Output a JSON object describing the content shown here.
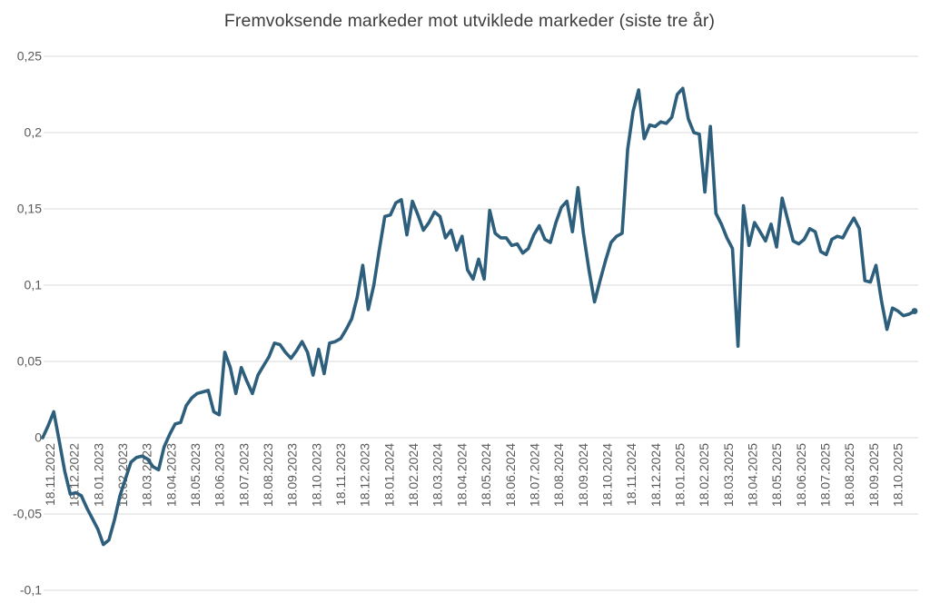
{
  "chart_data": {
    "type": "line",
    "title": "Fremvoksende markeder mot utviklede markeder (siste tre år)",
    "grid": "horizontal",
    "legend": "none",
    "line_color": "#2d5f7d",
    "grid_color": "#d9d9d9",
    "tick_color": "#595959",
    "title_color": "#3d3d3d",
    "background_color": "#ffffff",
    "end_marker": true,
    "ylim": [
      -0.1,
      0.25
    ],
    "y_tick_labels": [
      "0,25",
      "0,2",
      "0,15",
      "0,1",
      "0,05",
      "0",
      "-0,05",
      "-0,1"
    ],
    "y_tick_values": [
      0.25,
      0.2,
      0.15,
      0.1,
      0.05,
      0,
      -0.05,
      -0.1
    ],
    "x_labels": [
      "18.11.2022",
      "18.12.2022",
      "18.01.2023",
      "18.02.2023",
      "18.03.2023",
      "18.04.2023",
      "18.05.2023",
      "18.06.2023",
      "18.07.2023",
      "18.08.2023",
      "18.09.2023",
      "18.10.2023",
      "18.11.2023",
      "18.12.2023",
      "18.01.2024",
      "18.02.2024",
      "18.03.2024",
      "18.04.2024",
      "18.05.2024",
      "18.06.2024",
      "18.07.2024",
      "18.08.2024",
      "18.09.2024",
      "18.10.2024",
      "18.11.2024",
      "18.12.2024",
      "18.01.2025",
      "18.02.2025",
      "18.03.2025",
      "18.04.2025",
      "18.05.2025",
      "18.06.2025",
      "18.07.2025",
      "18.08.2025",
      "18.09.2025",
      "18.10.2025"
    ],
    "values": [
      0.0,
      0.008,
      0.017,
      -0.002,
      -0.022,
      -0.037,
      -0.036,
      -0.038,
      -0.046,
      -0.053,
      -0.06,
      -0.07,
      -0.067,
      -0.054,
      -0.038,
      -0.027,
      -0.016,
      -0.013,
      -0.012,
      -0.014,
      -0.019,
      -0.021,
      -0.006,
      0.002,
      0.009,
      0.01,
      0.021,
      0.026,
      0.029,
      0.03,
      0.031,
      0.017,
      0.015,
      0.056,
      0.046,
      0.029,
      0.046,
      0.037,
      0.029,
      0.041,
      0.047,
      0.053,
      0.062,
      0.061,
      0.056,
      0.052,
      0.057,
      0.063,
      0.056,
      0.041,
      0.058,
      0.042,
      0.062,
      0.063,
      0.065,
      0.071,
      0.078,
      0.092,
      0.113,
      0.084,
      0.1,
      0.123,
      0.145,
      0.146,
      0.154,
      0.156,
      0.133,
      0.155,
      0.146,
      0.136,
      0.141,
      0.148,
      0.145,
      0.131,
      0.136,
      0.123,
      0.132,
      0.11,
      0.104,
      0.117,
      0.104,
      0.149,
      0.134,
      0.131,
      0.131,
      0.126,
      0.127,
      0.121,
      0.124,
      0.133,
      0.139,
      0.13,
      0.128,
      0.141,
      0.151,
      0.155,
      0.135,
      0.164,
      0.134,
      0.11,
      0.089,
      0.103,
      0.116,
      0.128,
      0.132,
      0.134,
      0.189,
      0.214,
      0.228,
      0.196,
      0.205,
      0.204,
      0.207,
      0.206,
      0.21,
      0.225,
      0.229,
      0.209,
      0.2,
      0.199,
      0.161,
      0.204,
      0.147,
      0.14,
      0.131,
      0.124,
      0.06,
      0.152,
      0.126,
      0.141,
      0.135,
      0.129,
      0.14,
      0.125,
      0.157,
      0.143,
      0.129,
      0.127,
      0.13,
      0.137,
      0.135,
      0.122,
      0.12,
      0.13,
      0.132,
      0.131,
      0.138,
      0.144,
      0.137,
      0.103,
      0.102,
      0.113,
      0.09,
      0.071,
      0.085,
      0.083,
      0.08,
      0.081,
      0.083
    ]
  }
}
